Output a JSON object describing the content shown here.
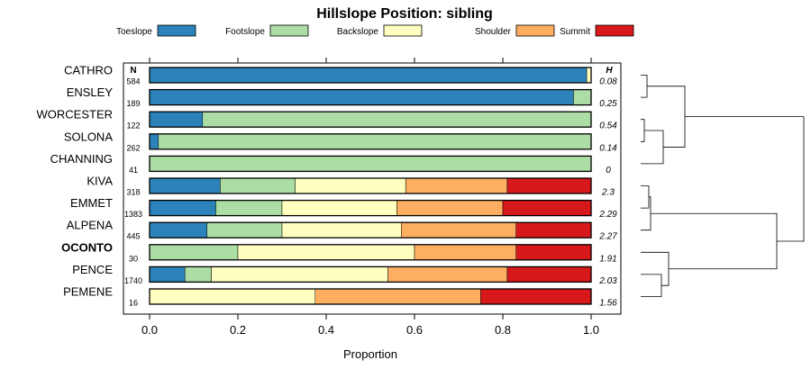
{
  "chart_data": {
    "type": "bar",
    "orientation": "horizontal",
    "stacked": true,
    "title": "Hillslope Position: sibling",
    "xlabel": "Proportion",
    "ylabel": "",
    "xlim": [
      0,
      1
    ],
    "xticks": [
      "0.0",
      "0.2",
      "0.4",
      "0.6",
      "0.8",
      "1.0"
    ],
    "legend_position": "top",
    "n_header": "N",
    "h_header": "H",
    "highlighted_category": "OCONTO",
    "categories": [
      "CATHRO",
      "ENSLEY",
      "WORCESTER",
      "SOLONA",
      "CHANNING",
      "KIVA",
      "EMMET",
      "ALPENA",
      "OCONTO",
      "PENCE",
      "PEMENE"
    ],
    "n": [
      "584",
      "189",
      "122",
      "262",
      "41",
      "318",
      "1383",
      "445",
      "30",
      "1740",
      "16"
    ],
    "h": [
      "0.08",
      "0.25",
      "0.54",
      "0.14",
      "0",
      "2.3",
      "2.29",
      "2.27",
      "1.91",
      "2.03",
      "1.56"
    ],
    "series": [
      {
        "name": "Toeslope",
        "color": "#2b83ba",
        "values": [
          0.99,
          0.96,
          0.12,
          0.02,
          0.0,
          0.16,
          0.15,
          0.13,
          0.0,
          0.08,
          0.0
        ]
      },
      {
        "name": "Footslope",
        "color": "#abdda4",
        "values": [
          0.0,
          0.04,
          0.88,
          0.98,
          1.0,
          0.17,
          0.15,
          0.17,
          0.2,
          0.06,
          0.0
        ]
      },
      {
        "name": "Backslope",
        "color": "#ffffbf",
        "values": [
          0.01,
          0.0,
          0.0,
          0.0,
          0.0,
          0.25,
          0.26,
          0.27,
          0.4,
          0.4,
          0.375
        ]
      },
      {
        "name": "Shoulder",
        "color": "#fdae61",
        "values": [
          0.0,
          0.0,
          0.0,
          0.0,
          0.0,
          0.23,
          0.24,
          0.26,
          0.23,
          0.27,
          0.375
        ]
      },
      {
        "name": "Summit",
        "color": "#d7191c",
        "values": [
          0.0,
          0.0,
          0.0,
          0.0,
          0.0,
          0.19,
          0.2,
          0.17,
          0.17,
          0.19,
          0.25
        ]
      }
    ]
  }
}
